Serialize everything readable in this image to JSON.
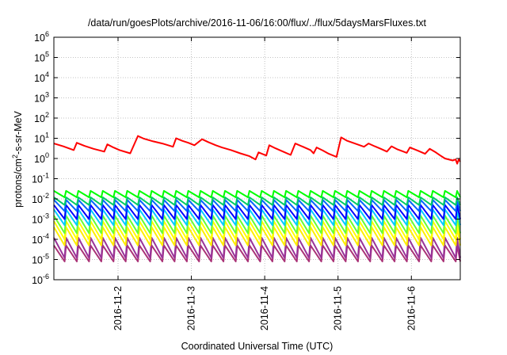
{
  "chart_data": {
    "type": "line",
    "title": "/data/run/goesPlots/archive/2016-11-06/16:00/flux/../flux/5daysMarsFluxes.txt",
    "xlabel": "Coordinated Universal Time (UTC)",
    "ylabel": "protons/cm²-s-sr-MeV",
    "ylabel_parts": {
      "pre": "protons/cm",
      "sup": "2",
      "post": "-s-sr-MeV"
    },
    "yscale": "log",
    "ylim": [
      1e-06,
      1000000.0
    ],
    "y_ticks": [
      {
        "base": "10",
        "exp": "-6",
        "value": 1e-06
      },
      {
        "base": "10",
        "exp": "-5",
        "value": 1e-05
      },
      {
        "base": "10",
        "exp": "-4",
        "value": 0.0001
      },
      {
        "base": "10",
        "exp": "-3",
        "value": 0.001
      },
      {
        "base": "10",
        "exp": "-2",
        "value": 0.01
      },
      {
        "base": "10",
        "exp": "-1",
        "value": 0.1
      },
      {
        "base": "10",
        "exp": "0",
        "value": 1
      },
      {
        "base": "10",
        "exp": "1",
        "value": 10
      },
      {
        "base": "10",
        "exp": "2",
        "value": 100
      },
      {
        "base": "10",
        "exp": "3",
        "value": 1000
      },
      {
        "base": "10",
        "exp": "4",
        "value": 10000
      },
      {
        "base": "10",
        "exp": "5",
        "value": 100000
      },
      {
        "base": "10",
        "exp": "6",
        "value": 1000000
      }
    ],
    "xlim": [
      "2016-11-01T03:00",
      "2016-11-06T16:00"
    ],
    "x_ticks": [
      {
        "label": "2016-11-2",
        "value": "2016-11-02T00:00"
      },
      {
        "label": "2016-11-3",
        "value": "2016-11-03T00:00"
      },
      {
        "label": "2016-11-4",
        "value": "2016-11-04T00:00"
      },
      {
        "label": "2016-11-5",
        "value": "2016-11-05T00:00"
      },
      {
        "label": "2016-11-6",
        "value": "2016-11-06T00:00"
      }
    ],
    "grid": true,
    "series": [
      {
        "color": "#ff0000",
        "kind": "line",
        "points": [
          [
            "2016-11-01T03:00",
            5.5
          ],
          [
            "2016-11-01T06:00",
            4.0
          ],
          [
            "2016-11-01T09:30",
            2.6
          ],
          [
            "2016-11-01T10:30",
            6.0
          ],
          [
            "2016-11-01T13:00",
            4.2
          ],
          [
            "2016-11-01T16:00",
            3.0
          ],
          [
            "2016-11-01T19:30",
            2.2
          ],
          [
            "2016-11-01T20:30",
            5.0
          ],
          [
            "2016-11-01T22:30",
            3.5
          ],
          [
            "2016-11-02T00:30",
            2.6
          ],
          [
            "2016-11-02T04:00",
            1.8
          ],
          [
            "2016-11-02T06:30",
            13
          ],
          [
            "2016-11-02T08:30",
            9.5
          ],
          [
            "2016-11-02T11:30",
            7.0
          ],
          [
            "2016-11-02T14:30",
            5.5
          ],
          [
            "2016-11-02T18:00",
            3.8
          ],
          [
            "2016-11-02T19:00",
            10
          ],
          [
            "2016-11-02T21:00",
            7.5
          ],
          [
            "2016-11-02T23:00",
            6.0
          ],
          [
            "2016-11-03T01:00",
            4.5
          ],
          [
            "2016-11-03T03:30",
            9.0
          ],
          [
            "2016-11-03T05:30",
            6.5
          ],
          [
            "2016-11-03T08:00",
            4.5
          ],
          [
            "2016-11-03T10:00",
            3.5
          ],
          [
            "2016-11-03T13:00",
            2.6
          ],
          [
            "2016-11-03T16:00",
            1.8
          ],
          [
            "2016-11-03T19:00",
            1.3
          ],
          [
            "2016-11-03T21:00",
            0.9
          ],
          [
            "2016-11-03T22:00",
            2.0
          ],
          [
            "2016-11-04T00:30",
            1.4
          ],
          [
            "2016-11-04T01:30",
            4.5
          ],
          [
            "2016-11-04T03:30",
            3.2
          ],
          [
            "2016-11-04T06:00",
            2.2
          ],
          [
            "2016-11-04T08:30",
            1.5
          ],
          [
            "2016-11-04T10:00",
            5.5
          ],
          [
            "2016-11-04T12:30",
            3.8
          ],
          [
            "2016-11-04T15:00",
            2.6
          ],
          [
            "2016-11-04T16:00",
            1.8
          ],
          [
            "2016-11-04T17:00",
            3.5
          ],
          [
            "2016-11-04T19:00",
            2.5
          ],
          [
            "2016-11-04T21:00",
            1.7
          ],
          [
            "2016-11-04T23:30",
            1.2
          ],
          [
            "2016-11-05T01:00",
            11
          ],
          [
            "2016-11-05T03:00",
            7.5
          ],
          [
            "2016-11-05T05:30",
            5.5
          ],
          [
            "2016-11-05T08:30",
            3.8
          ],
          [
            "2016-11-05T10:00",
            5.5
          ],
          [
            "2016-11-05T12:00",
            4.0
          ],
          [
            "2016-11-05T14:00",
            3.0
          ],
          [
            "2016-11-05T16:00",
            2.2
          ],
          [
            "2016-11-05T17:30",
            4.0
          ],
          [
            "2016-11-05T19:30",
            2.8
          ],
          [
            "2016-11-05T22:30",
            1.9
          ],
          [
            "2016-11-05T23:30",
            3.5
          ],
          [
            "2016-11-06T02:00",
            2.5
          ],
          [
            "2016-11-06T04:30",
            1.7
          ],
          [
            "2016-11-06T06:00",
            3.0
          ],
          [
            "2016-11-06T08:00",
            2.0
          ],
          [
            "2016-11-06T09:30",
            1.4
          ],
          [
            "2016-11-06T11:00",
            1.0
          ],
          [
            "2016-11-06T13:30",
            0.8
          ],
          [
            "2016-11-06T14:30",
            0.9
          ],
          [
            "2016-11-06T15:00",
            0.55
          ],
          [
            "2016-11-06T15:30",
            0.9
          ],
          [
            "2016-11-06T16:00",
            0.7
          ]
        ]
      },
      {
        "color": "#00ff00",
        "kind": "sawtooth",
        "start": "2016-11-01T03:00",
        "period_hours": 4,
        "teeth": 34,
        "peak": 0.025,
        "trough": 0.012
      },
      {
        "color": "#00cc66",
        "kind": "sawtooth",
        "start": "2016-11-01T03:00",
        "period_hours": 4,
        "teeth": 34,
        "peak": 0.012,
        "trough": 0.005
      },
      {
        "color": "#0066ff",
        "kind": "sawtooth",
        "start": "2016-11-01T03:00",
        "period_hours": 4,
        "teeth": 34,
        "peak": 0.009,
        "trough": 0.0025
      },
      {
        "color": "#0000ff",
        "kind": "sawtooth",
        "start": "2016-11-01T03:00",
        "period_hours": 4,
        "teeth": 34,
        "peak": 0.005,
        "trough": 0.001
      },
      {
        "color": "#00ccff",
        "kind": "sawtooth",
        "start": "2016-11-01T03:00",
        "period_hours": 4,
        "teeth": 34,
        "peak": 0.003,
        "trough": 0.0005
      },
      {
        "color": "#66ff33",
        "kind": "sawtooth",
        "start": "2016-11-01T03:00",
        "period_hours": 4,
        "teeth": 34,
        "peak": 0.0015,
        "trough": 0.0002
      },
      {
        "color": "#ffff00",
        "kind": "sawtooth",
        "start": "2016-11-01T03:00",
        "period_hours": 4,
        "teeth": 34,
        "peak": 0.0008,
        "trough": 0.0001
      },
      {
        "color": "#ffee00",
        "kind": "sawtooth",
        "start": "2016-11-01T03:00",
        "period_hours": 4,
        "teeth": 34,
        "peak": 0.0004,
        "trough": 5e-05
      },
      {
        "color": "#993399",
        "kind": "sawtooth",
        "start": "2016-11-01T03:00",
        "period_hours": 4,
        "teeth": 34,
        "peak": 0.00012,
        "trough": 1.2e-05
      },
      {
        "color": "#aa3377",
        "kind": "sawtooth",
        "start": "2016-11-01T03:00",
        "period_hours": 4,
        "teeth": 34,
        "peak": 5e-05,
        "trough": 8e-06
      }
    ]
  }
}
